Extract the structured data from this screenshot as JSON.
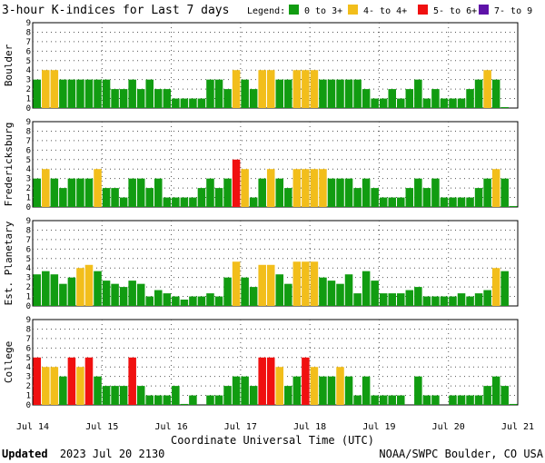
{
  "title": "3-hour K-indices for Last 7 days",
  "legend": {
    "label": "Legend:",
    "items": [
      {
        "label": "0 to 3+",
        "color": "#119c11"
      },
      {
        "label": "4- to 4+",
        "color": "#f2be1b"
      },
      {
        "label": "5- to 6+",
        "color": "#f01010"
      },
      {
        "label": "7- to 9",
        "color": "#5e12a8"
      }
    ]
  },
  "footer": {
    "updated_label": "Updated",
    "updated_value": "2023 Jul 20 2130",
    "source": "NOAA/SWPC Boulder, CO USA"
  },
  "chart_data": {
    "type": "bar",
    "xlabel": "Coordinate Universal Time (UTC)",
    "x_ticks": [
      "Jul 14",
      "Jul 15",
      "Jul 16",
      "Jul 17",
      "Jul 18",
      "Jul 19",
      "Jul 20",
      "Jul 21"
    ],
    "y_ticks": [
      0,
      1,
      2,
      3,
      4,
      5,
      6,
      7,
      8,
      9
    ],
    "ylim": [
      0,
      9
    ],
    "intervals_per_day": 8,
    "days": 7,
    "grid": "dotted",
    "panels": [
      {
        "name": "Boulder",
        "values": [
          3,
          4,
          4,
          3,
          3,
          3,
          3,
          3,
          3,
          2,
          2,
          3,
          2,
          3,
          2,
          2,
          1,
          1,
          1,
          1,
          3,
          3,
          2,
          4,
          3,
          2,
          4,
          4,
          3,
          3,
          4,
          4,
          4,
          3,
          3,
          3,
          3,
          3,
          2,
          1,
          1,
          2,
          1,
          2,
          3,
          1,
          2,
          1,
          1,
          1,
          2,
          3,
          4,
          3,
          0.1
        ]
      },
      {
        "name": "Fredericksburg",
        "values": [
          3,
          4,
          3,
          2,
          3,
          3,
          3,
          4,
          2,
          2,
          1,
          3,
          3,
          2,
          3,
          1,
          1,
          1,
          1,
          2,
          3,
          2,
          3,
          5,
          4,
          1,
          3,
          4,
          3,
          2,
          4,
          4,
          4,
          4,
          3,
          3,
          3,
          2,
          3,
          2,
          1,
          1,
          1,
          2,
          3,
          2,
          3,
          1,
          1,
          1,
          1,
          2,
          3,
          4,
          3,
          0.1
        ]
      },
      {
        "name": "Est. Planetary",
        "values": [
          3.33,
          3.67,
          3.33,
          2.33,
          3,
          4,
          4.33,
          3.67,
          2.67,
          2.33,
          2,
          2.67,
          2.33,
          1,
          1.67,
          1.33,
          1,
          0.67,
          1,
          1,
          1.33,
          1,
          3,
          4.67,
          3,
          2,
          4.33,
          4.33,
          3.33,
          2.33,
          4.67,
          4.67,
          4.67,
          3,
          2.67,
          2.33,
          3.33,
          1.33,
          3.67,
          2.67,
          1.33,
          1.33,
          1.33,
          1.67,
          2,
          1,
          1,
          1,
          1,
          1.33,
          1,
          1.33,
          1.67,
          4,
          3.67
        ]
      },
      {
        "name": "College",
        "values": [
          5,
          4,
          4,
          3,
          5,
          4,
          5,
          3,
          2,
          2,
          2,
          5,
          2,
          1,
          1,
          1,
          2,
          0.1,
          1,
          0,
          1,
          1,
          2,
          3,
          3,
          2,
          5,
          5,
          4,
          2,
          3,
          5,
          4,
          3,
          3,
          4,
          3,
          1,
          3,
          1,
          1,
          1,
          1,
          0,
          3,
          1,
          1,
          0,
          1,
          1,
          1,
          1,
          2,
          3,
          2,
          0.1
        ]
      }
    ]
  }
}
